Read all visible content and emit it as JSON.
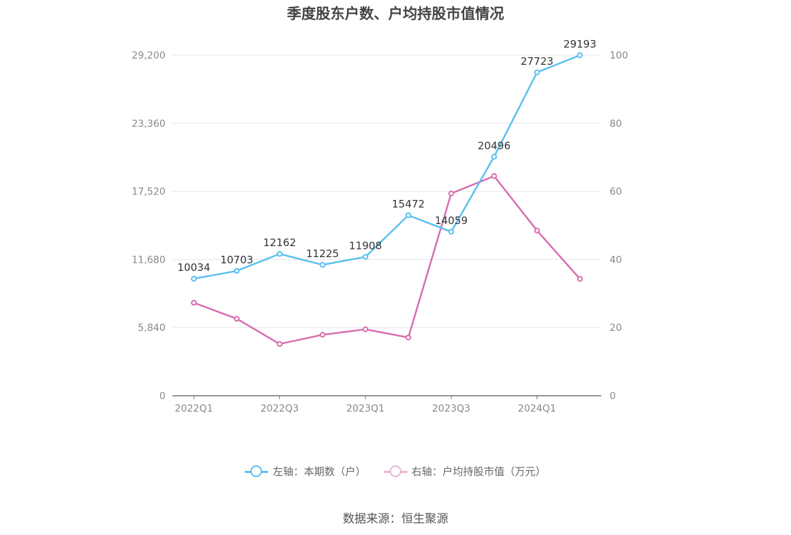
{
  "title": "季度股东户数、户均持股市值情况",
  "source": "数据来源：恒生聚源",
  "colors": {
    "holders": "#5bc0f0",
    "value": "#d76db0",
    "grid": "#e3e6ef",
    "axis": "#6e7079",
    "tick": "#888888"
  },
  "chart_data": {
    "type": "line",
    "title": "季度股东户数、户均持股市值情况",
    "x": [
      "2022Q1",
      "2022Q2",
      "2022Q3",
      "2022Q4",
      "2023Q1",
      "2023Q2",
      "2023Q3",
      "2023Q4",
      "2024Q1",
      "2024Q2"
    ],
    "x_tick_labels": [
      "2022Q1",
      "",
      "2022Q3",
      "",
      "2023Q1",
      "",
      "2023Q3",
      "",
      "2024Q1",
      ""
    ],
    "left_axis": {
      "ylim": [
        0,
        29200
      ],
      "ticks": [
        0,
        5840,
        11680,
        17520,
        23360,
        29200
      ],
      "tick_labels": [
        "0",
        "5,840",
        "11,680",
        "17,520",
        "23,360",
        "29,200"
      ]
    },
    "right_axis": {
      "ylim": [
        0,
        100
      ],
      "ticks": [
        0,
        20,
        40,
        60,
        80,
        100
      ],
      "tick_labels": [
        "0",
        "20",
        "40",
        "60",
        "80",
        "100"
      ]
    },
    "series": [
      {
        "name": "左轴：本期数（户）",
        "axis": "left",
        "color": "#5bc0f0",
        "show_labels": true,
        "values": [
          10034,
          10703,
          12162,
          11225,
          11908,
          15472,
          14059,
          20496,
          27723,
          29193
        ]
      },
      {
        "name": "右轴：户均持股市值（万元）",
        "axis": "right",
        "color": "#d76db0",
        "show_labels": false,
        "values": [
          27.3,
          22.6,
          15.2,
          17.9,
          19.5,
          17.1,
          59.4,
          64.5,
          48.5,
          34.3
        ]
      }
    ],
    "grid": true,
    "legend_position": "bottom"
  }
}
